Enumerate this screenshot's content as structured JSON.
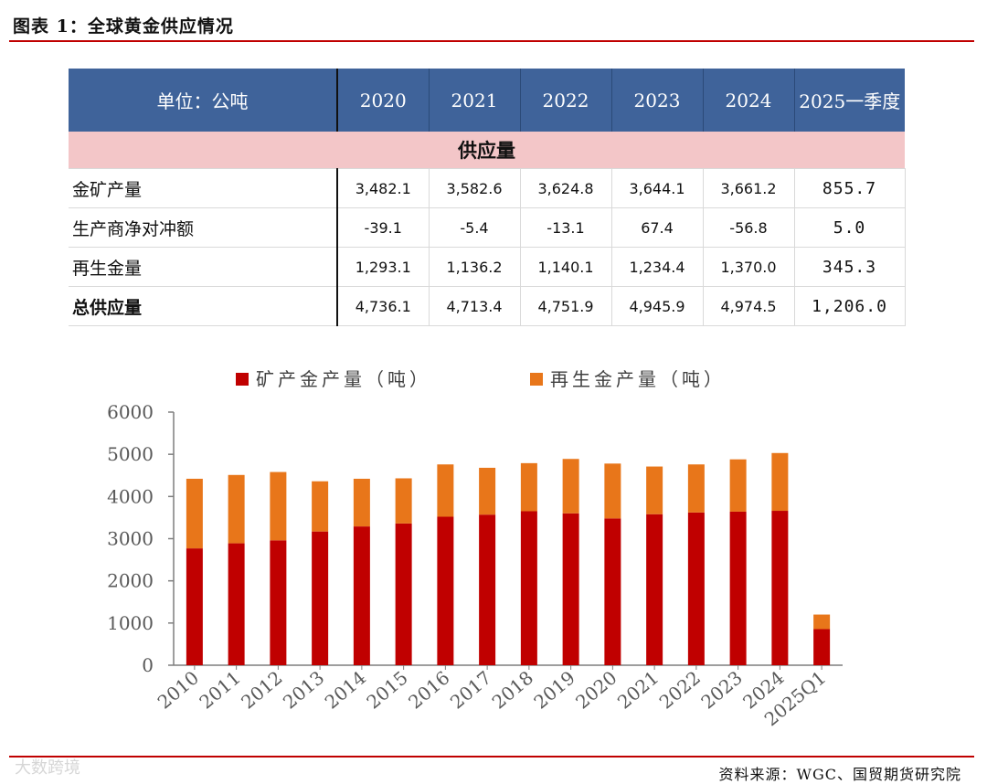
{
  "figure_title": "图表 1：全球黄金供应情况",
  "table": {
    "header": [
      "单位：公吨",
      "2020",
      "2021",
      "2022",
      "2023",
      "2024",
      "2025一季度"
    ],
    "section_label": "供应量",
    "rows": [
      {
        "label": "金矿产量",
        "values": [
          "3,482.1",
          "3,582.6",
          "3,624.8",
          "3,644.1",
          "3,661.2",
          "855.7"
        ]
      },
      {
        "label": "生产商净对冲额",
        "values": [
          "-39.1",
          "-5.4",
          "-13.1",
          "67.4",
          "-56.8",
          "5.0"
        ]
      },
      {
        "label": "再生金量",
        "values": [
          "1,293.1",
          "1,136.2",
          "1,140.1",
          "1,234.4",
          "1,370.0",
          "345.3"
        ]
      },
      {
        "label": "总供应量",
        "values": [
          "4,736.1",
          "4,713.4",
          "4,751.9",
          "4,945.9",
          "4,974.5",
          "1,206.0"
        ]
      }
    ]
  },
  "chart_data": {
    "type": "bar",
    "stacked": true,
    "categories": [
      "2010",
      "2011",
      "2012",
      "2013",
      "2014",
      "2015",
      "2016",
      "2017",
      "2018",
      "2019",
      "2020",
      "2021",
      "2022",
      "2023",
      "2024",
      "2025Q1"
    ],
    "series": [
      {
        "name": "矿产金产量（吨）",
        "color": "#c00000",
        "values": [
          2770,
          2890,
          2960,
          3170,
          3290,
          3360,
          3520,
          3570,
          3650,
          3600,
          3480,
          3580,
          3620,
          3640,
          3660,
          856
        ]
      },
      {
        "name": "再生金产量（吨）",
        "color": "#e8761a",
        "values": [
          1650,
          1620,
          1620,
          1190,
          1130,
          1070,
          1240,
          1110,
          1140,
          1290,
          1300,
          1130,
          1140,
          1240,
          1370,
          345
        ]
      }
    ],
    "ylim": [
      0,
      6000
    ],
    "yticks": [
      0,
      1000,
      2000,
      3000,
      4000,
      5000,
      6000
    ],
    "legend": "top",
    "grid": false
  },
  "watermark": "大数跨境",
  "source": "资料来源：WGC、国贸期货研究院"
}
